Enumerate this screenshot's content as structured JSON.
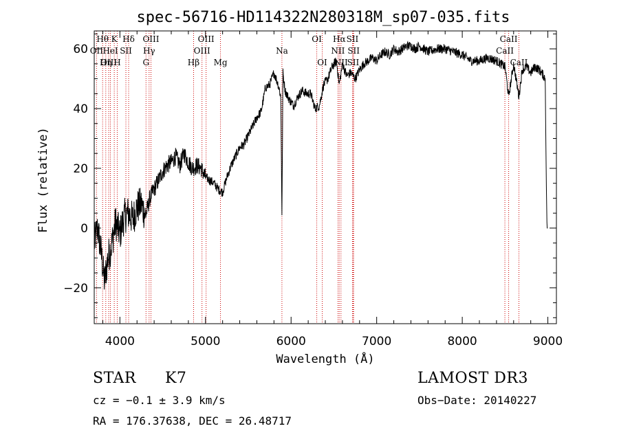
{
  "chart_data": {
    "type": "line",
    "title": "spec-56716-HD114322N280318M_sp07-035.fits",
    "xlabel": "Wavelength (Å)",
    "ylabel": "Flux (relative)",
    "xlim": [
      3700,
      9100
    ],
    "ylim": [
      -32,
      66
    ],
    "xticks": [
      4000,
      5000,
      6000,
      7000,
      8000,
      9000
    ],
    "yticks": [
      -20,
      0,
      20,
      40,
      60
    ],
    "series": [
      {
        "name": "flux",
        "x": [
          3700,
          3740,
          3780,
          3820,
          3860,
          3900,
          3950,
          4000,
          4050,
          4100,
          4150,
          4200,
          4250,
          4300,
          4350,
          4400,
          4450,
          4500,
          4550,
          4600,
          4650,
          4700,
          4750,
          4800,
          4850,
          4900,
          4950,
          5000,
          5050,
          5100,
          5150,
          5200,
          5250,
          5300,
          5350,
          5400,
          5450,
          5500,
          5550,
          5600,
          5650,
          5700,
          5750,
          5800,
          5850,
          5880,
          5893,
          5905,
          5930,
          5980,
          6030,
          6080,
          6130,
          6180,
          6230,
          6280,
          6330,
          6380,
          6430,
          6480,
          6530,
          6563,
          6600,
          6650,
          6700,
          6750,
          6800,
          6850,
          6900,
          6950,
          7000,
          7050,
          7100,
          7150,
          7200,
          7250,
          7300,
          7350,
          7400,
          7450,
          7500,
          7600,
          7700,
          7800,
          7900,
          8000,
          8100,
          8200,
          8300,
          8400,
          8500,
          8542,
          8600,
          8662,
          8700,
          8750,
          8800,
          8850,
          8900,
          8950,
          8970,
          8980,
          8990,
          9000
        ],
        "values": [
          -5,
          0,
          -8,
          -18,
          -10,
          -6,
          2,
          -2,
          4,
          5,
          3,
          7,
          8,
          4,
          10,
          13,
          16,
          19,
          21,
          22,
          24,
          21,
          25,
          22,
          20,
          21,
          20,
          17,
          16,
          15,
          13,
          12,
          17,
          21,
          24,
          27,
          28,
          31,
          34,
          37,
          39,
          47,
          48,
          52,
          48,
          44,
          4,
          52,
          46,
          43,
          41,
          44,
          46,
          45,
          45,
          40,
          41,
          48,
          50,
          54,
          56,
          48,
          55,
          51,
          52,
          50,
          53,
          55,
          56,
          57,
          56,
          58,
          59,
          58,
          60,
          59,
          60,
          61,
          61,
          60,
          61,
          59,
          60,
          60,
          59,
          58,
          56,
          56,
          57,
          56,
          54,
          44,
          55,
          44,
          53,
          54,
          52,
          54,
          53,
          51,
          50,
          20,
          0,
          0
        ]
      }
    ],
    "lines": [
      {
        "label": "Hθ",
        "x": 3798,
        "row": 0
      },
      {
        "label": "OII",
        "x": 3727,
        "row": 1
      },
      {
        "label": "OIII",
        "x": 3869,
        "row": 2
      },
      {
        "label": "K",
        "x": 3934,
        "row": 0
      },
      {
        "label": "HeI",
        "x": 3889,
        "row": 1
      },
      {
        "label": "Hη",
        "x": 3835,
        "row": 2
      },
      {
        "label": "SII",
        "x": 4070,
        "row": 1
      },
      {
        "label": "H",
        "x": 3969,
        "row": 2
      },
      {
        "label": "Hδ",
        "x": 4102,
        "row": 0
      },
      {
        "label": "OIII",
        "x": 4363,
        "row": 0
      },
      {
        "label": "Hγ",
        "x": 4341,
        "row": 1
      },
      {
        "label": "G",
        "x": 4305,
        "row": 2
      },
      {
        "label": "OIII",
        "x": 5007,
        "row": 0
      },
      {
        "label": "OIII",
        "x": 4959,
        "row": 1
      },
      {
        "label": "Hβ",
        "x": 4861,
        "row": 2
      },
      {
        "label": "Mg",
        "x": 5175,
        "row": 2
      },
      {
        "label": "Na",
        "x": 5893,
        "row": 1
      },
      {
        "label": "OI",
        "x": 6300,
        "row": 0
      },
      {
        "label": "OI",
        "x": 6364,
        "row": 2
      },
      {
        "label": "Hα",
        "x": 6563,
        "row": 0
      },
      {
        "label": "SII",
        "x": 6717,
        "row": 0
      },
      {
        "label": "NII",
        "x": 6548,
        "row": 1
      },
      {
        "label": "SII",
        "x": 6731,
        "row": 1
      },
      {
        "label": "NII",
        "x": 6583,
        "row": 2
      },
      {
        "label": "SII",
        "x": 6725,
        "row": 2
      },
      {
        "label": "CaII",
        "x": 8542,
        "row": 0
      },
      {
        "label": "CaII",
        "x": 8498,
        "row": 1
      },
      {
        "label": "CaII",
        "x": 8662,
        "row": 2
      }
    ]
  },
  "info": {
    "object_class": "STAR",
    "subclass": "K7",
    "survey": "LAMOST DR3",
    "cz": "cz = −0.1 ± 3.9 km/s",
    "obs_date": "Obs−Date: 20140227",
    "coords": "RA = 176.37638, DEC =  26.48717"
  },
  "colors": {
    "spectrum": "#000000",
    "line_marker": "#cc0000",
    "background": "#ffffff"
  }
}
